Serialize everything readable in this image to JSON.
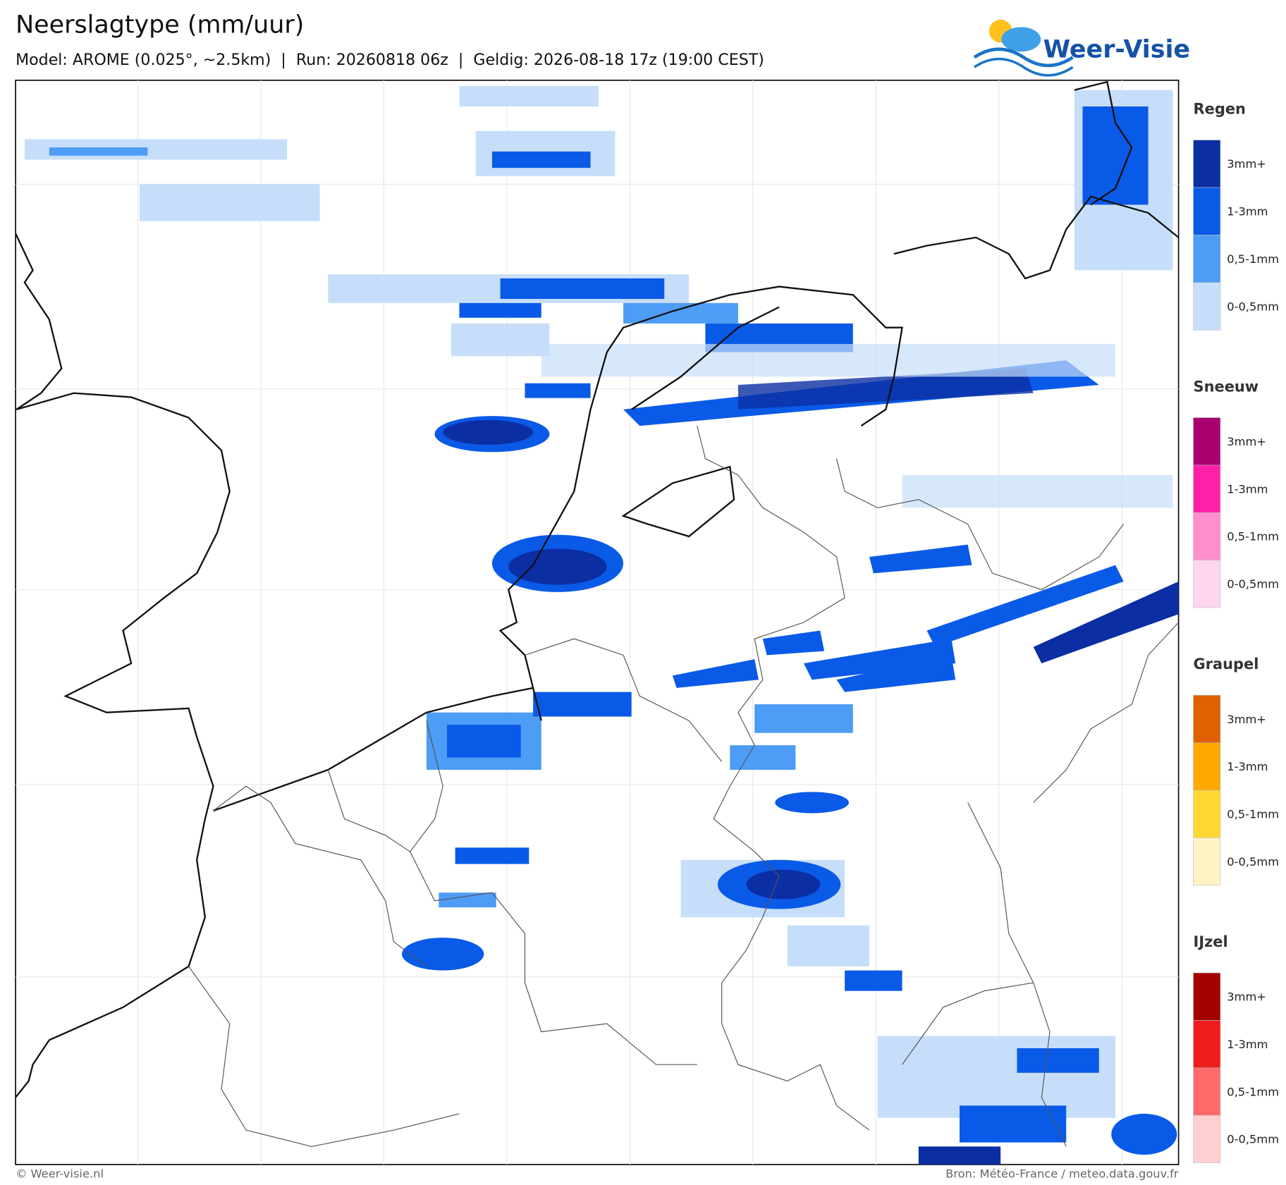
{
  "header": {
    "title": "Neerslagtype (mm/uur)",
    "subtitle": "Model: AROME (0.025°, ~2.5km)  |  Run: 20260818 06z  |  Geldig: 2026-08-18 17z (19:00 CEST)",
    "logo": "Weer-Visie"
  },
  "legend": [
    {
      "title": "Regen",
      "items": [
        {
          "label": "3mm+",
          "color": "#0b2ea3"
        },
        {
          "label": "1-3mm",
          "color": "#0a5ae8"
        },
        {
          "label": "0,5-1mm",
          "color": "#4d9cf5"
        },
        {
          "label": "0-0,5mm",
          "color": "#c7defa"
        }
      ]
    },
    {
      "title": "Sneeuw",
      "items": [
        {
          "label": "3mm+",
          "color": "#a8006e"
        },
        {
          "label": "1-3mm",
          "color": "#ff20a8"
        },
        {
          "label": "0,5-1mm",
          "color": "#ff8fcf"
        },
        {
          "label": "0-0,5mm",
          "color": "#ffd6ee"
        }
      ]
    },
    {
      "title": "Graupel",
      "items": [
        {
          "label": "3mm+",
          "color": "#e06000"
        },
        {
          "label": "1-3mm",
          "color": "#ffa800"
        },
        {
          "label": "0,5-1mm",
          "color": "#ffd733"
        },
        {
          "label": "0-0,5mm",
          "color": "#fff2c4"
        }
      ]
    },
    {
      "title": "IJzel",
      "items": [
        {
          "label": "3mm+",
          "color": "#a30000"
        },
        {
          "label": "1-3mm",
          "color": "#ee1c1c"
        },
        {
          "label": "0,5-1mm",
          "color": "#ff6b6b"
        },
        {
          "label": "0-0,5mm",
          "color": "#ffd0d0"
        }
      ]
    }
  ],
  "footer": {
    "left": "© Weer-visie.nl",
    "right": "Bron: Météo-France / meteo.data.gouv.fr"
  }
}
